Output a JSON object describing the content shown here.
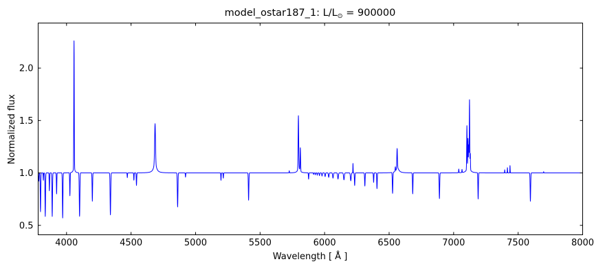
{
  "figure": {
    "background": "#ffffff",
    "axis_color": "#000000"
  },
  "title": {
    "full": "model_ostar187_1: L/L⊙ = 900000",
    "prefix": "model_ostar187_1: L/L",
    "subscript": "⊙",
    "suffix": " = 900000"
  },
  "chart_data": {
    "type": "line",
    "title": "model_ostar187_1: L/L⊙ = 900000",
    "xlabel": "Wavelength [ Å ]",
    "ylabel": "Normalized flux",
    "xlim": [
      3780,
      8000
    ],
    "ylim": [
      0.41,
      2.43
    ],
    "xticks": [
      4000,
      4500,
      5000,
      5500,
      6000,
      6500,
      7000,
      7500,
      8000
    ],
    "xtick_labels": [
      "4000",
      "4500",
      "5000",
      "5500",
      "6000",
      "6500",
      "7000",
      "7500",
      "8000"
    ],
    "yticks": [
      0.5,
      1.0,
      1.5,
      2.0
    ],
    "ytick_labels": [
      "0.5",
      "1.0",
      "1.5",
      "2.0"
    ],
    "grid": false,
    "legend": null,
    "line_color": "#0000ff",
    "continuum": 1.0,
    "lines_note": "each line = [center_wavelength_A, peak_normalized_flux, gaussian_sigma_A]; peak<1 = absorption, peak>1 = emission",
    "lines": [
      [
        3782,
        0.95,
        1.5
      ],
      [
        3785,
        0.93,
        1.2
      ],
      [
        3798,
        0.63,
        2.0
      ],
      [
        3820,
        0.93,
        1.3
      ],
      [
        3835,
        0.585,
        2.0
      ],
      [
        3867,
        0.83,
        1.6
      ],
      [
        3889,
        0.585,
        2.0
      ],
      [
        3923,
        0.8,
        1.6
      ],
      [
        3970,
        0.57,
        2.0
      ],
      [
        4026,
        0.78,
        1.7
      ],
      [
        4058,
        2.21,
        1.7
      ],
      [
        4101,
        0.585,
        2.3
      ],
      [
        4200,
        0.73,
        1.9
      ],
      [
        4340,
        0.6,
        2.3
      ],
      [
        4471,
        0.955,
        1.4
      ],
      [
        4522,
        0.93,
        1.4
      ],
      [
        4542,
        0.88,
        1.7
      ],
      [
        4686,
        1.37,
        3.2
      ],
      [
        4861,
        0.675,
        2.3
      ],
      [
        4922,
        0.96,
        1.4
      ],
      [
        5197,
        0.93,
        1.4
      ],
      [
        5215,
        0.95,
        1.4
      ],
      [
        5411,
        0.74,
        2.0
      ],
      [
        5726,
        1.02,
        1.2
      ],
      [
        5797,
        1.5,
        2.2
      ],
      [
        5812,
        1.22,
        1.8
      ],
      [
        5876,
        0.94,
        1.6
      ],
      [
        5915,
        0.985,
        1.4
      ],
      [
        5928,
        0.982,
        1.5
      ],
      [
        5943,
        0.978,
        1.7
      ],
      [
        5960,
        0.974,
        1.9
      ],
      [
        5980,
        0.97,
        2.1
      ],
      [
        6004,
        0.965,
        2.3
      ],
      [
        6032,
        0.958,
        2.5
      ],
      [
        6065,
        0.95,
        2.7
      ],
      [
        6104,
        0.942,
        2.9
      ],
      [
        6150,
        0.934,
        3.1
      ],
      [
        6203,
        0.925,
        3.0
      ],
      [
        6220,
        1.09,
        1.1
      ],
      [
        6233,
        0.88,
        2.0
      ],
      [
        6312,
        0.875,
        1.9
      ],
      [
        6380,
        0.91,
        1.7
      ],
      [
        6406,
        0.85,
        1.9
      ],
      [
        6527,
        0.8,
        2.1
      ],
      [
        6548,
        1.04,
        1.4
      ],
      [
        6562,
        1.19,
        2.3
      ],
      [
        6683,
        0.8,
        1.9
      ],
      [
        6890,
        0.755,
        2.1
      ],
      [
        7040,
        1.035,
        1.4
      ],
      [
        7065,
        1.03,
        1.4
      ],
      [
        7103,
        1.41,
        1.7
      ],
      [
        7111,
        1.25,
        1.5
      ],
      [
        7117,
        1.18,
        1.4
      ],
      [
        7123,
        1.64,
        1.7
      ],
      [
        7129,
        1.15,
        1.4
      ],
      [
        7190,
        0.75,
        1.9
      ],
      [
        7396,
        1.03,
        1.1
      ],
      [
        7417,
        1.05,
        1.1
      ],
      [
        7437,
        1.07,
        1.1
      ],
      [
        7595,
        0.73,
        2.1
      ],
      [
        7698,
        1.012,
        1.1
      ]
    ],
    "wings_note": "broad lorentzian pedestals added to strong emission lines = [center, added_amplitude, half_width_A]",
    "wings": [
      [
        4058,
        0.05,
        7
      ],
      [
        4686,
        0.1,
        12
      ],
      [
        5800,
        0.05,
        10
      ],
      [
        6565,
        0.045,
        14
      ],
      [
        7115,
        0.09,
        11
      ]
    ]
  }
}
